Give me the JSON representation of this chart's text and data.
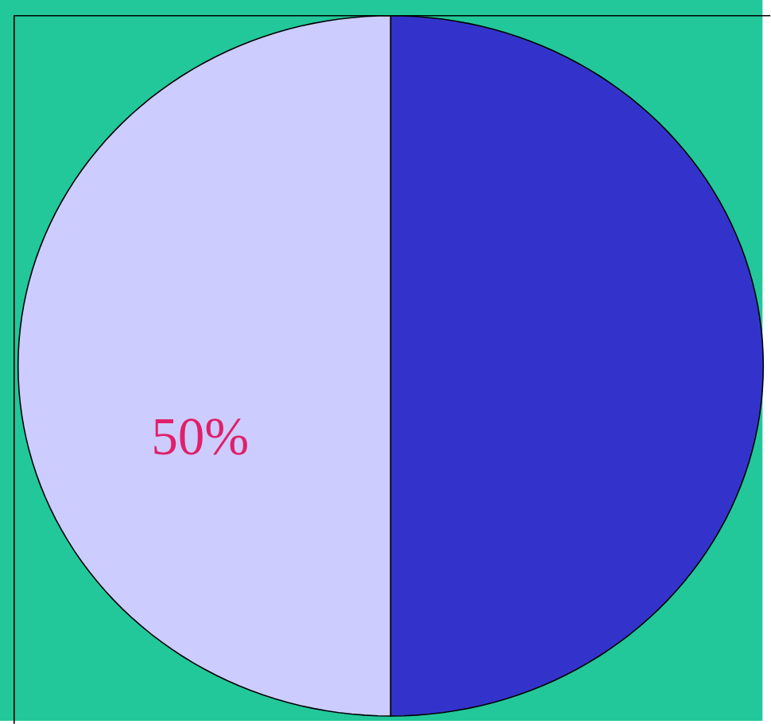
{
  "chart_data": {
    "type": "pie",
    "categories": [
      null,
      null
    ],
    "values": [
      50,
      50
    ],
    "colors": [
      "#ccccff",
      "#3333cc"
    ],
    "value_labels": [
      "50%",
      null
    ]
  }
}
